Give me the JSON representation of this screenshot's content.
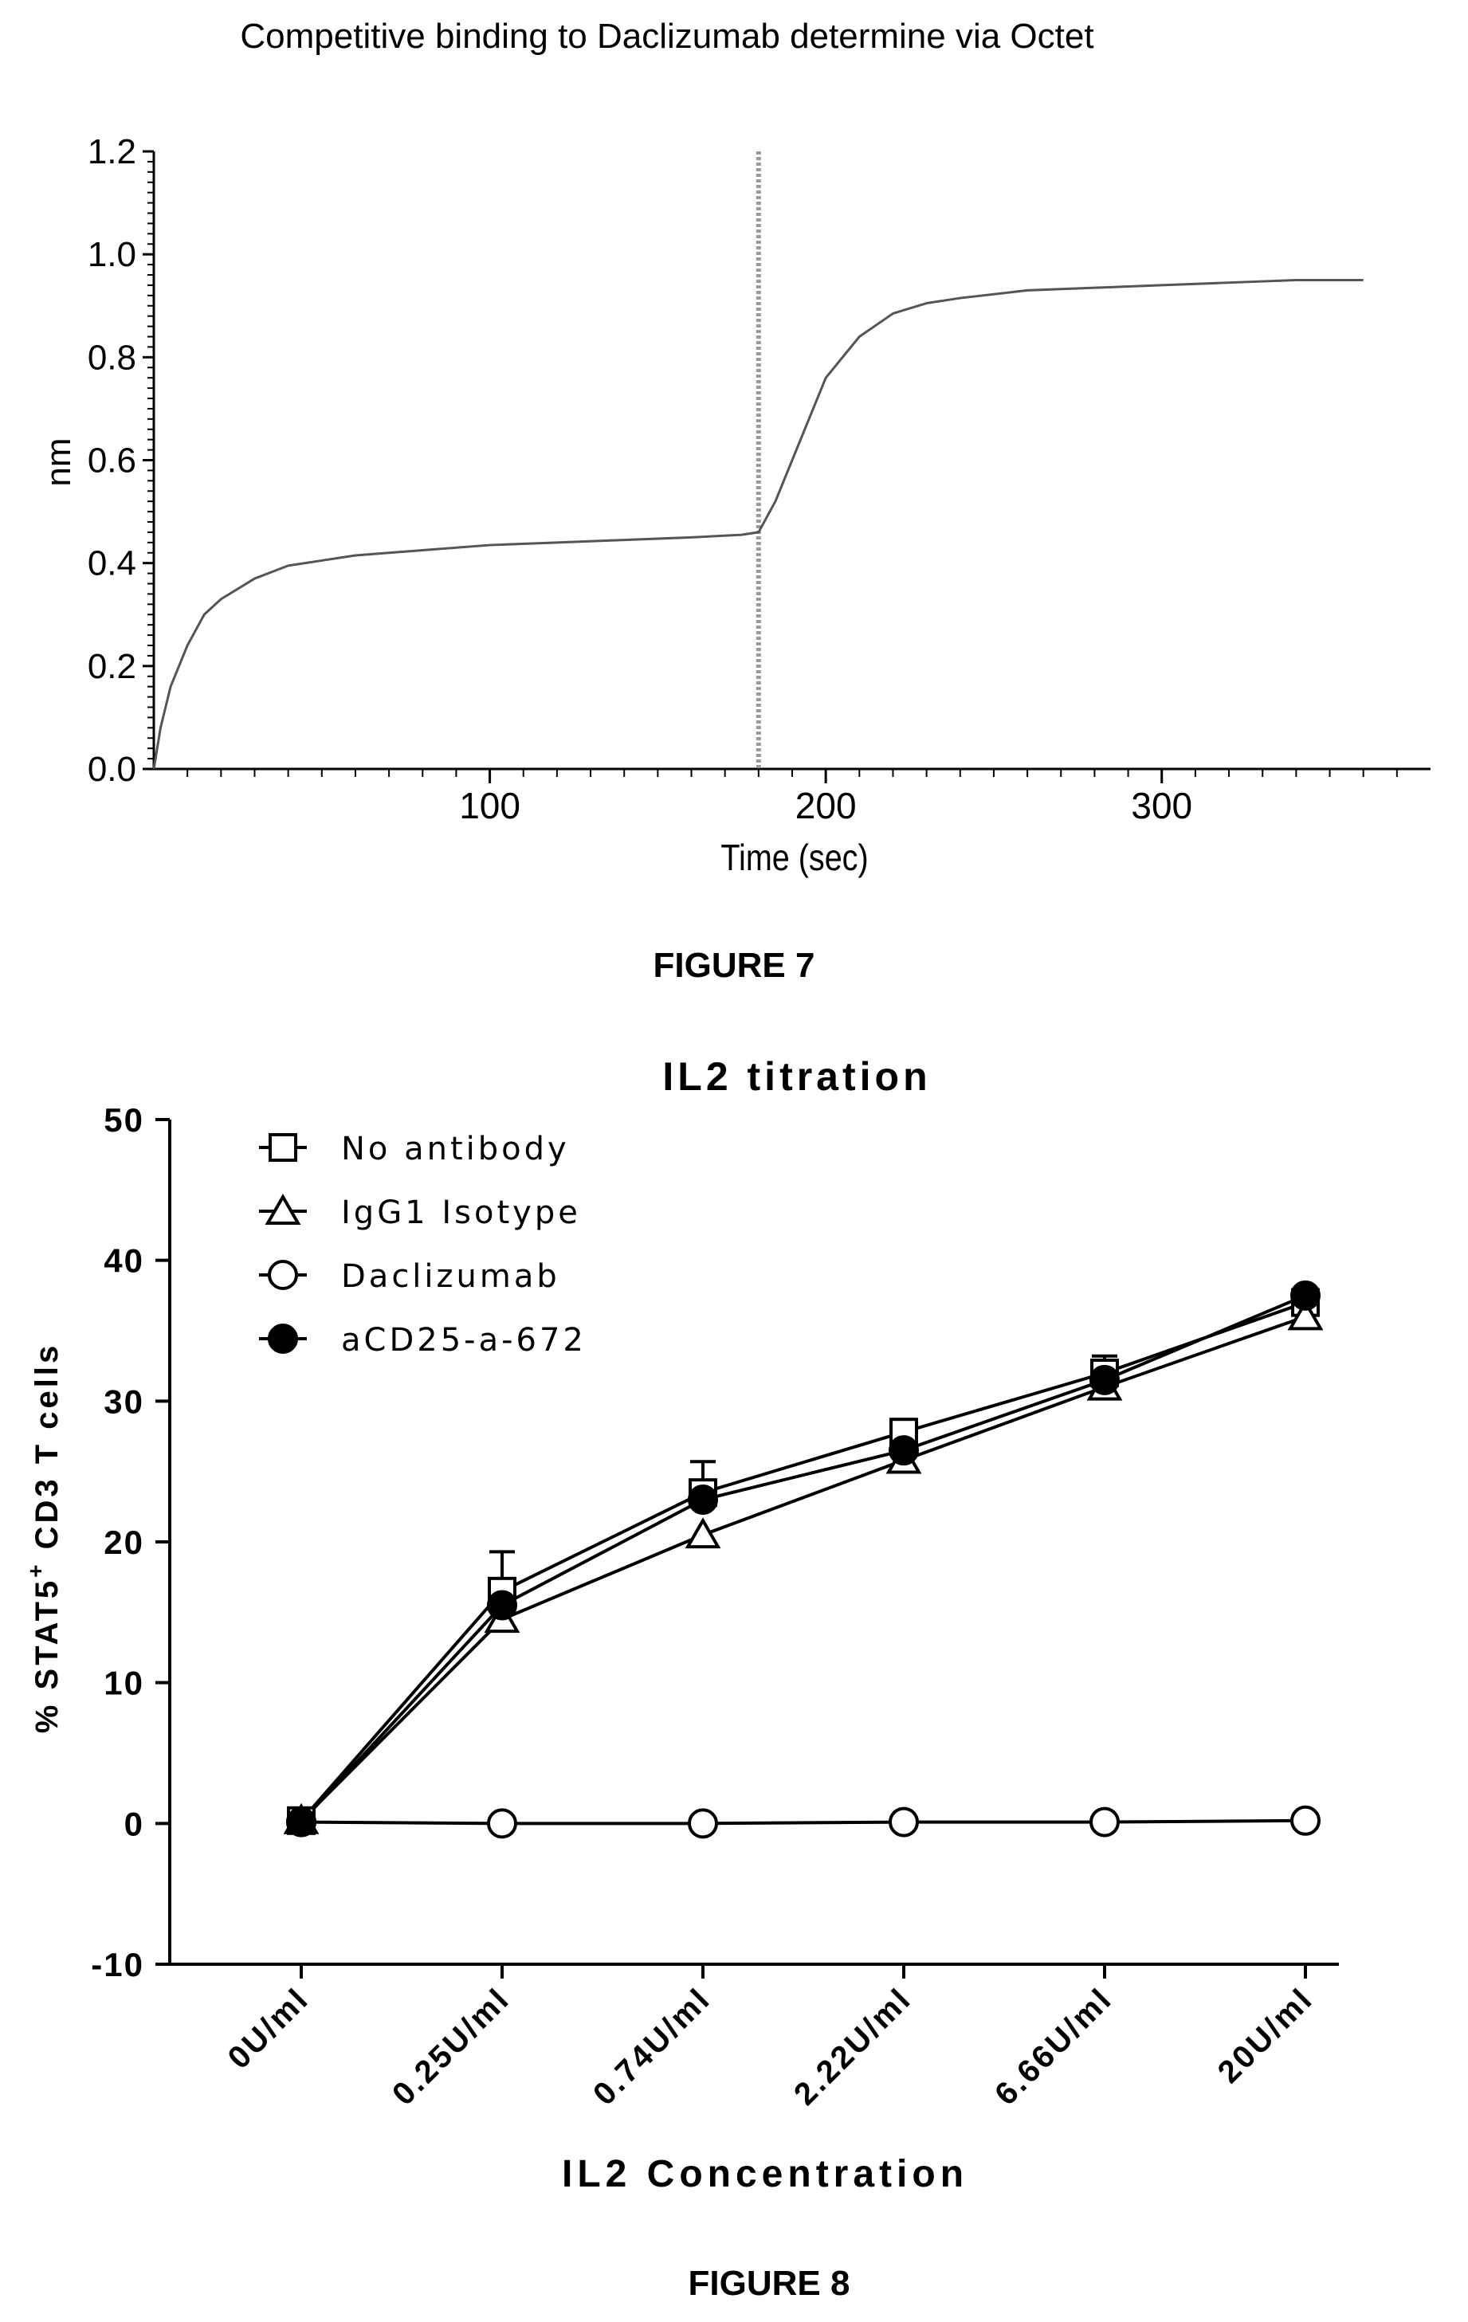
{
  "chart_data": [
    {
      "type": "line",
      "title": "Competitive binding to Daclizumab determine via Octet",
      "xlabel": "Time (sec)",
      "ylabel": "nm",
      "xlim": [
        0,
        380
      ],
      "ylim": [
        0,
        1.2
      ],
      "x_ticks": [
        100,
        200,
        300
      ],
      "y_ticks": [
        "0.0",
        "0.2",
        "0.4",
        "0.6",
        "0.8",
        "1.0",
        "1.2"
      ],
      "vertical_marker": {
        "x": 180,
        "style": "dashed",
        "color": "#999999"
      },
      "grid": false,
      "series": [
        {
          "color": "#555555",
          "x": [
            0,
            2,
            5,
            10,
            15,
            20,
            30,
            40,
            50,
            60,
            80,
            100,
            120,
            140,
            160,
            175,
            180,
            185,
            190,
            195,
            200,
            210,
            220,
            230,
            240,
            260,
            280,
            300,
            320,
            340,
            360
          ],
          "y": [
            0.0,
            0.08,
            0.16,
            0.24,
            0.3,
            0.33,
            0.37,
            0.395,
            0.405,
            0.415,
            0.425,
            0.435,
            0.44,
            0.445,
            0.45,
            0.455,
            0.46,
            0.52,
            0.6,
            0.68,
            0.76,
            0.84,
            0.885,
            0.905,
            0.915,
            0.93,
            0.935,
            0.94,
            0.945,
            0.95,
            0.95
          ]
        }
      ],
      "figure_label": "FIGURE 7"
    },
    {
      "type": "line",
      "title": "IL2 titration",
      "xlabel": "IL2 Concentration",
      "ylabel": "% STAT5",
      "ylabel_sup": "+",
      "ylabel_rest": " CD3 T cells",
      "categories": [
        "0U/ml",
        "0.25U/ml",
        "0.74U/ml",
        "2.22U/ml",
        "6.66U/ml",
        "20U/ml"
      ],
      "ylim": [
        -10,
        50
      ],
      "y_ticks": [
        "-10",
        "0",
        "10",
        "20",
        "30",
        "40",
        "50"
      ],
      "legend": "top-left",
      "series": [
        {
          "name": "No antibody",
          "marker": "square-open",
          "values": [
            0.2,
            16.5,
            23.5,
            27.8,
            32.0,
            37.0
          ],
          "err": [
            0,
            2.8,
            2.2,
            0,
            1.2,
            0.6
          ]
        },
        {
          "name": "IgG1 Isotype",
          "marker": "triangle-open",
          "values": [
            0.2,
            14.5,
            20.5,
            25.8,
            31.0,
            36.0
          ],
          "err": [
            0,
            0,
            0,
            0,
            1.0,
            0.6
          ]
        },
        {
          "name": "Daclizumab",
          "marker": "circle-open",
          "values": [
            0.1,
            0.0,
            0.0,
            0.1,
            0.1,
            0.2
          ],
          "err": [
            0,
            0,
            0,
            0,
            0,
            0
          ]
        },
        {
          "name": "aCD25-a-672",
          "marker": "circle-filled",
          "values": [
            0.1,
            15.5,
            23.0,
            26.5,
            31.5,
            37.5
          ],
          "err": [
            0,
            0,
            0,
            0,
            0,
            0
          ]
        }
      ],
      "figure_label": "FIGURE 8"
    }
  ]
}
